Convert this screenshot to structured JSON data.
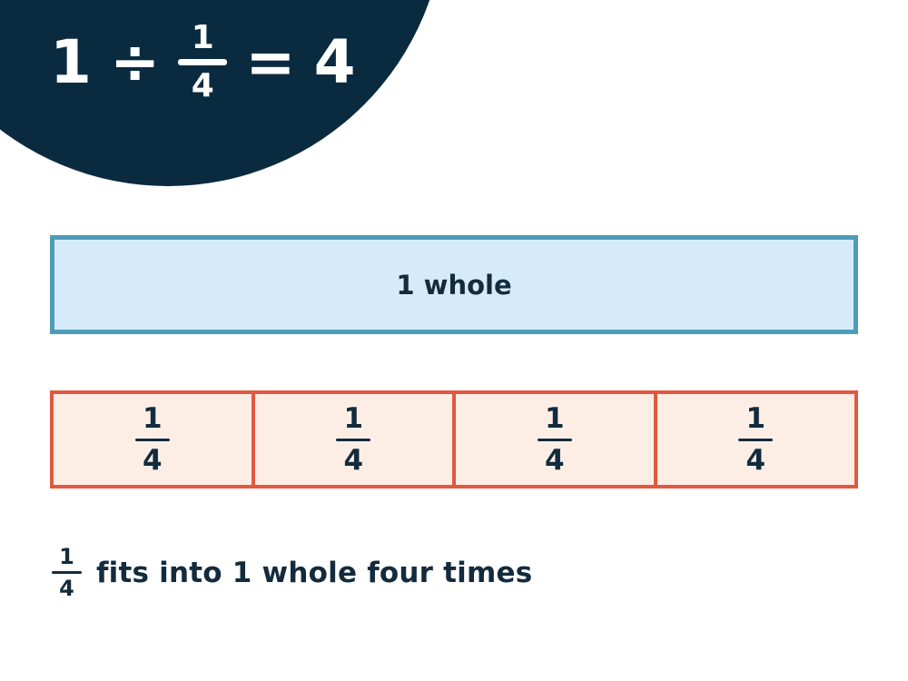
{
  "colors": {
    "navy": "#0a2b3f",
    "white": "#ffffff",
    "text": "#132b3d",
    "blue_fill": "#d6ebfa",
    "blue_border": "#4f9cb8",
    "red_fill": "#fceee5",
    "red_border": "#e0593f"
  },
  "header": {
    "equation": {
      "dividend": "1",
      "operator": "÷",
      "divisor_fraction": {
        "numerator": "1",
        "denominator": "4"
      },
      "equals": "=",
      "result": "4"
    }
  },
  "whole_bar": {
    "label": "1 whole"
  },
  "quarter_bar": {
    "cells": [
      {
        "numerator": "1",
        "denominator": "4"
      },
      {
        "numerator": "1",
        "denominator": "4"
      },
      {
        "numerator": "1",
        "denominator": "4"
      },
      {
        "numerator": "1",
        "denominator": "4"
      }
    ]
  },
  "caption": {
    "fraction": {
      "numerator": "1",
      "denominator": "4"
    },
    "text": "fits into 1 whole four times"
  }
}
